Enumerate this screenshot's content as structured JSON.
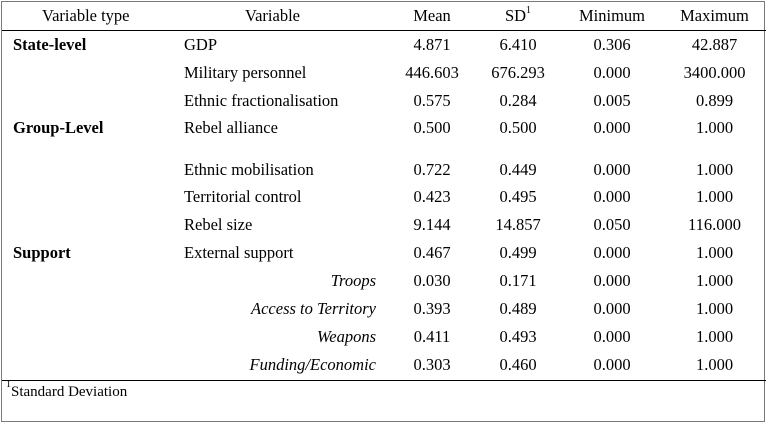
{
  "header": {
    "variable_type": "Variable type",
    "variable": "Variable",
    "mean": "Mean",
    "sd": "SD",
    "sd_sup": "1",
    "minimum": "Minimum",
    "maximum": "Maximum"
  },
  "rows": [
    {
      "type": "State-level",
      "variable": "GDP",
      "mean": "4.871",
      "sd": "6.410",
      "min": "0.306",
      "max": "42.887"
    },
    {
      "type": "",
      "variable": "Military personnel",
      "mean": "446.603",
      "sd": "676.293",
      "min": "0.000",
      "max": "3400.000"
    },
    {
      "type": "",
      "variable": "Ethnic fractionalisation",
      "mean": "0.575",
      "sd": "0.284",
      "min": "0.005",
      "max": "0.899"
    },
    {
      "type": "Group-Level",
      "variable": "Rebel alliance",
      "mean": "0.500",
      "sd": "0.500",
      "min": "0.000",
      "max": "1.000"
    },
    {
      "type": "",
      "variable": "Ethnic mobilisation",
      "mean": "0.722",
      "sd": "0.449",
      "min": "0.000",
      "max": "1.000"
    },
    {
      "type": "",
      "variable": "Territorial control",
      "mean": "0.423",
      "sd": "0.495",
      "min": "0.000",
      "max": "1.000"
    },
    {
      "type": "",
      "variable": "Rebel size",
      "mean": "9.144",
      "sd": "14.857",
      "min": "0.050",
      "max": "116.000"
    },
    {
      "type": "Support",
      "variable": "External support",
      "mean": "0.467",
      "sd": "0.499",
      "min": "0.000",
      "max": "1.000"
    },
    {
      "type": "",
      "variable": "Troops",
      "mean": "0.030",
      "sd": "0.171",
      "min": "0.000",
      "max": "1.000"
    },
    {
      "type": "",
      "variable": "Access to Territory",
      "mean": "0.393",
      "sd": "0.489",
      "min": "0.000",
      "max": "1.000"
    },
    {
      "type": "",
      "variable": "Weapons",
      "mean": "0.411",
      "sd": "0.493",
      "min": "0.000",
      "max": "1.000"
    },
    {
      "type": "",
      "variable": "Funding/Economic",
      "mean": "0.303",
      "sd": "0.460",
      "min": "0.000",
      "max": "1.000"
    }
  ],
  "footnote": {
    "marker": "1",
    "text": "Standard Deviation"
  }
}
